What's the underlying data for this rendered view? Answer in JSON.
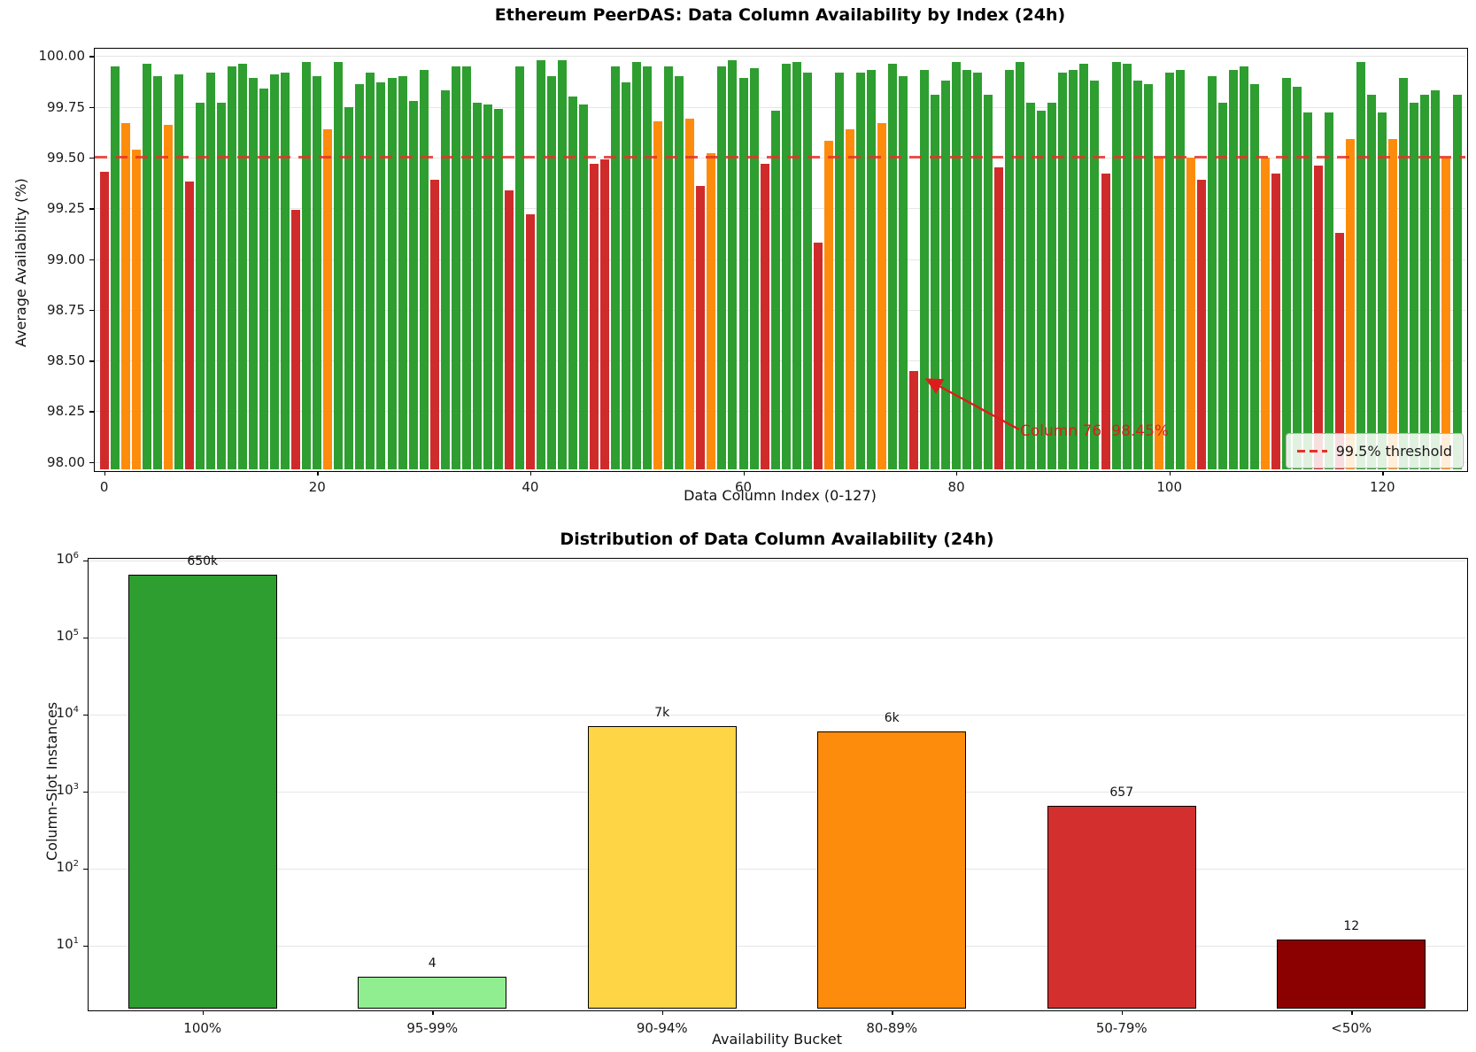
{
  "chart_data": [
    {
      "type": "bar",
      "title": "Ethereum PeerDAS: Data Column Availability by Index (24h)",
      "xlabel": "Data Column Index (0-127)",
      "ylabel": "Average Availability (%)",
      "ylim": [
        98.0,
        100.04
      ],
      "yticks": [
        "100.00",
        "99.75",
        "99.50",
        "99.25",
        "99.00",
        "98.75",
        "98.50",
        "98.25",
        "98.00"
      ],
      "xticks": [
        "0",
        "20",
        "40",
        "60",
        "80",
        "100",
        "120"
      ],
      "grid": true,
      "legend_position": "lower right",
      "threshold": {
        "value": 99.5,
        "label": "99.5% threshold",
        "color": "#e53229",
        "linestyle": "dashed"
      },
      "annotation": {
        "text": "Column 76: 98.45%",
        "target_column": 76,
        "target_value": 98.45,
        "color": "#dd1c1c"
      },
      "palette": {
        "green": "#2e9e30",
        "orange": "#fd8c0c",
        "red": "#d02b2b"
      },
      "x_range": [
        0,
        127
      ],
      "values": [
        99.43,
        99.95,
        99.67,
        99.54,
        99.96,
        99.9,
        99.66,
        99.91,
        99.38,
        99.77,
        99.92,
        99.77,
        99.95,
        99.96,
        99.89,
        99.84,
        99.91,
        99.92,
        99.24,
        99.97,
        99.9,
        99.64,
        99.97,
        99.75,
        99.86,
        99.92,
        99.87,
        99.89,
        99.9,
        99.78,
        99.93,
        99.39,
        99.83,
        99.95,
        99.95,
        99.77,
        99.76,
        99.74,
        99.34,
        99.95,
        99.22,
        99.98,
        99.9,
        99.98,
        99.8,
        99.76,
        99.47,
        99.49,
        99.95,
        99.87,
        99.97,
        99.95,
        99.68,
        99.95,
        99.9,
        99.69,
        99.36,
        99.52,
        99.95,
        99.98,
        99.89,
        99.94,
        99.47,
        99.73,
        99.96,
        99.97,
        99.92,
        99.08,
        99.58,
        99.92,
        99.64,
        99.92,
        99.93,
        99.67,
        99.96,
        99.9,
        98.45,
        99.93,
        99.81,
        99.88,
        99.97,
        99.93,
        99.92,
        99.81,
        99.45,
        99.93,
        99.97,
        99.77,
        99.73,
        99.77,
        99.92,
        99.93,
        99.96,
        99.88,
        99.42,
        99.97,
        99.96,
        99.88,
        99.86,
        99.5,
        99.92,
        99.93,
        99.5,
        99.39,
        99.9,
        99.77,
        99.93,
        99.95,
        99.86,
        99.5,
        99.42,
        99.89,
        99.85,
        99.72,
        99.46,
        99.72,
        99.13,
        99.59,
        99.97,
        99.81,
        99.72,
        99.59,
        99.89,
        99.77,
        99.81,
        99.83,
        99.5,
        99.81
      ],
      "bar_colors": [
        "red",
        "green",
        "orange",
        "orange",
        "green",
        "green",
        "orange",
        "green",
        "red",
        "green",
        "green",
        "green",
        "green",
        "green",
        "green",
        "green",
        "green",
        "green",
        "red",
        "green",
        "green",
        "orange",
        "green",
        "green",
        "green",
        "green",
        "green",
        "green",
        "green",
        "green",
        "green",
        "red",
        "green",
        "green",
        "green",
        "green",
        "green",
        "green",
        "red",
        "green",
        "red",
        "green",
        "green",
        "green",
        "green",
        "green",
        "red",
        "red",
        "green",
        "green",
        "green",
        "green",
        "orange",
        "green",
        "green",
        "orange",
        "red",
        "orange",
        "green",
        "green",
        "green",
        "green",
        "red",
        "green",
        "green",
        "green",
        "green",
        "red",
        "orange",
        "green",
        "orange",
        "green",
        "green",
        "orange",
        "green",
        "green",
        "red",
        "green",
        "green",
        "green",
        "green",
        "green",
        "green",
        "green",
        "red",
        "green",
        "green",
        "green",
        "green",
        "green",
        "green",
        "green",
        "green",
        "green",
        "red",
        "green",
        "green",
        "green",
        "green",
        "orange",
        "green",
        "green",
        "orange",
        "red",
        "green",
        "green",
        "green",
        "green",
        "green",
        "orange",
        "red",
        "green",
        "green",
        "green",
        "red",
        "green",
        "red",
        "orange",
        "green",
        "green",
        "green",
        "orange",
        "green",
        "green",
        "green",
        "green",
        "orange",
        "green"
      ]
    },
    {
      "type": "bar",
      "title": "Distribution of Data Column Availability (24h)",
      "xlabel": "Availability Bucket",
      "ylabel": "Column-Slot Instances",
      "yscale": "log",
      "ylim_exponents": [
        0.17,
        6
      ],
      "ytick_exponents": [
        6,
        5,
        4,
        3,
        2,
        1
      ],
      "grid": true,
      "categories": [
        "100%",
        "95-99%",
        "90-94%",
        "80-89%",
        "50-79%",
        "<50%"
      ],
      "values": [
        650000,
        4,
        7000,
        6000,
        657,
        12
      ],
      "value_labels": [
        "650k",
        "4",
        "7k",
        "6k",
        "657",
        "12"
      ],
      "bar_colors": [
        "#2e9e30",
        "#90ee90",
        "#fdd545",
        "#fd8c0c",
        "#d32f2f",
        "#8b0000"
      ],
      "edge_color": "#000000"
    }
  ]
}
